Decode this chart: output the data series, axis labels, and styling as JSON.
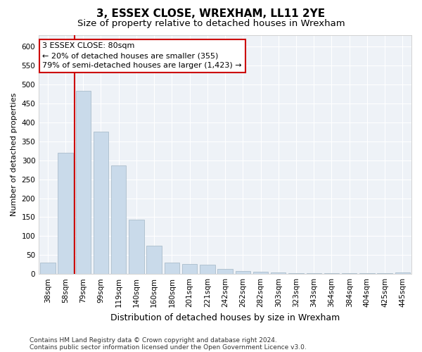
{
  "title": "3, ESSEX CLOSE, WREXHAM, LL11 2YE",
  "subtitle": "Size of property relative to detached houses in Wrexham",
  "xlabel": "Distribution of detached houses by size in Wrexham",
  "ylabel": "Number of detached properties",
  "categories": [
    "38sqm",
    "58sqm",
    "79sqm",
    "99sqm",
    "119sqm",
    "140sqm",
    "160sqm",
    "180sqm",
    "201sqm",
    "221sqm",
    "242sqm",
    "262sqm",
    "282sqm",
    "303sqm",
    "323sqm",
    "343sqm",
    "364sqm",
    "384sqm",
    "404sqm",
    "425sqm",
    "445sqm"
  ],
  "values": [
    30,
    320,
    483,
    375,
    287,
    143,
    75,
    30,
    27,
    25,
    13,
    7,
    5,
    4,
    3,
    3,
    3,
    3,
    3,
    3,
    4
  ],
  "bar_color": "#c9daea",
  "bar_edge_color": "#aabdcc",
  "vline_x": 1.5,
  "vline_color": "#cc0000",
  "annotation_text": "3 ESSEX CLOSE: 80sqm\n← 20% of detached houses are smaller (355)\n79% of semi-detached houses are larger (1,423) →",
  "annotation_box_facecolor": "#ffffff",
  "annotation_box_edgecolor": "#cc0000",
  "ylim": [
    0,
    630
  ],
  "yticks": [
    0,
    50,
    100,
    150,
    200,
    250,
    300,
    350,
    400,
    450,
    500,
    550,
    600
  ],
  "footer_line1": "Contains HM Land Registry data © Crown copyright and database right 2024.",
  "footer_line2": "Contains public sector information licensed under the Open Government Licence v3.0.",
  "title_fontsize": 11,
  "subtitle_fontsize": 9.5,
  "xlabel_fontsize": 9,
  "ylabel_fontsize": 8,
  "tick_fontsize": 7.5,
  "annotation_fontsize": 8,
  "footer_fontsize": 6.5,
  "bg_color": "#ffffff",
  "plot_bg_color": "#eef2f7",
  "grid_color": "#ffffff"
}
